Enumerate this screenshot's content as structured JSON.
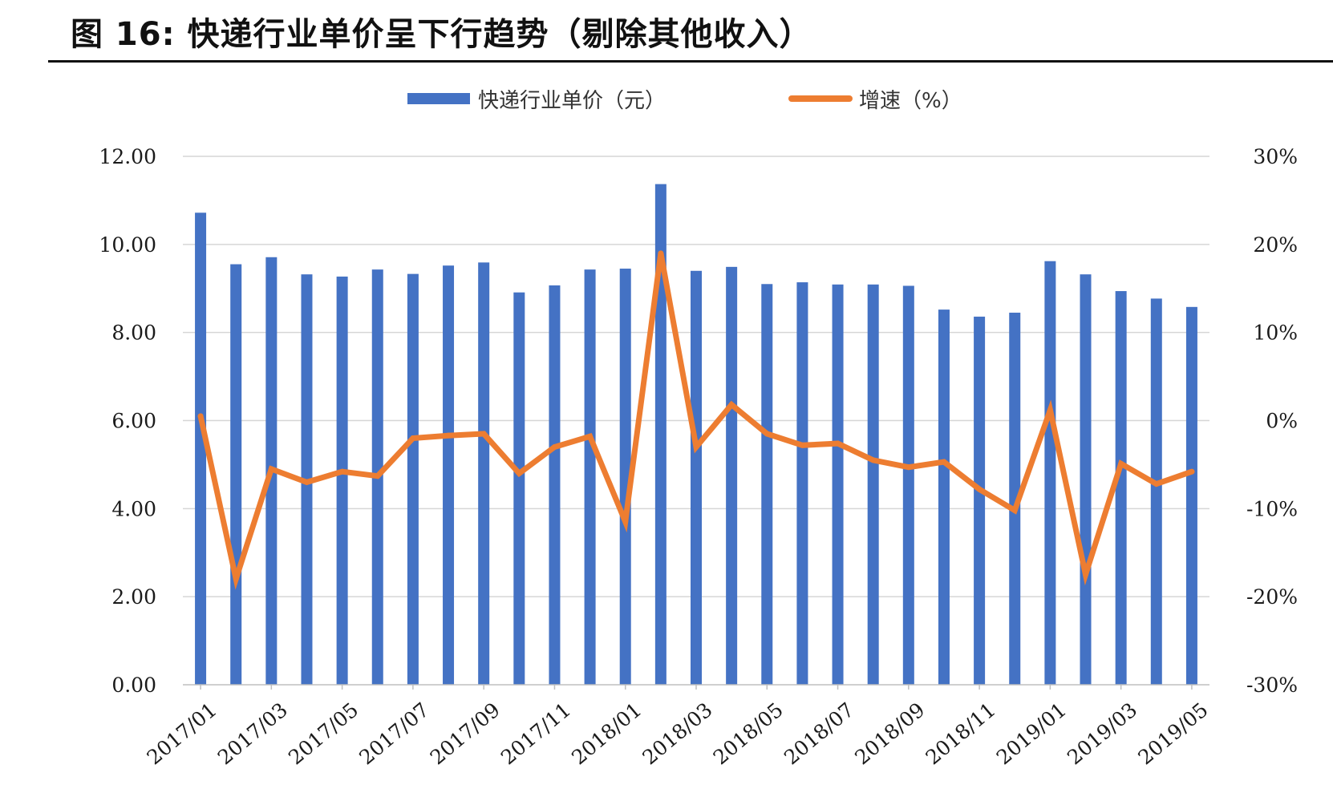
{
  "figure": {
    "title": "图 16:  快递行业单价呈下行趋势（剔除其他收入）"
  },
  "chart_data": {
    "type": "bar",
    "categories": [
      "2017/01",
      "2017/02",
      "2017/03",
      "2017/04",
      "2017/05",
      "2017/06",
      "2017/07",
      "2017/08",
      "2017/09",
      "2017/10",
      "2017/11",
      "2017/12",
      "2018/01",
      "2018/02",
      "2018/03",
      "2018/04",
      "2018/05",
      "2018/06",
      "2018/07",
      "2018/08",
      "2018/09",
      "2018/10",
      "2018/11",
      "2018/12",
      "2019/01",
      "2019/02",
      "2019/03",
      "2019/04",
      "2019/05"
    ],
    "x_tick_labels": [
      "2017/01",
      "2017/03",
      "2017/05",
      "2017/07",
      "2017/09",
      "2017/11",
      "2018/01",
      "2018/03",
      "2018/05",
      "2018/07",
      "2018/09",
      "2018/11",
      "2019/01",
      "2019/03",
      "2019/05"
    ],
    "series": [
      {
        "name": "快递行业单价（元）",
        "type": "bar",
        "axis": "left",
        "color": "#4472C4",
        "values": [
          10.72,
          9.55,
          9.71,
          9.32,
          9.27,
          9.43,
          9.33,
          9.52,
          9.59,
          8.91,
          9.07,
          9.43,
          9.45,
          11.37,
          9.4,
          9.49,
          9.1,
          9.14,
          9.09,
          9.09,
          9.06,
          8.52,
          8.36,
          8.45,
          9.62,
          9.32,
          8.94,
          8.77,
          8.58
        ]
      },
      {
        "name": "增速（%）",
        "type": "line",
        "axis": "right",
        "color": "#ED7D31",
        "values": [
          0.5,
          -18.0,
          -5.5,
          -7.0,
          -5.8,
          -6.3,
          -2.0,
          -1.7,
          -1.5,
          -6.0,
          -3.0,
          -1.8,
          -11.5,
          19.0,
          -3.0,
          1.8,
          -1.5,
          -2.8,
          -2.6,
          -4.5,
          -5.3,
          -4.7,
          -7.8,
          -10.2,
          1.2,
          -17.5,
          -4.9,
          -7.2,
          -5.8
        ]
      }
    ],
    "y_left": {
      "min": 0,
      "max": 12,
      "ticks": [
        "0.00",
        "2.00",
        "4.00",
        "6.00",
        "8.00",
        "10.00",
        "12.00"
      ]
    },
    "y_right": {
      "min": -30,
      "max": 30,
      "ticks": [
        "-30%",
        "-20%",
        "-10%",
        "0%",
        "10%",
        "20%",
        "30%"
      ]
    },
    "grid": true,
    "legend_position": "top-center"
  }
}
